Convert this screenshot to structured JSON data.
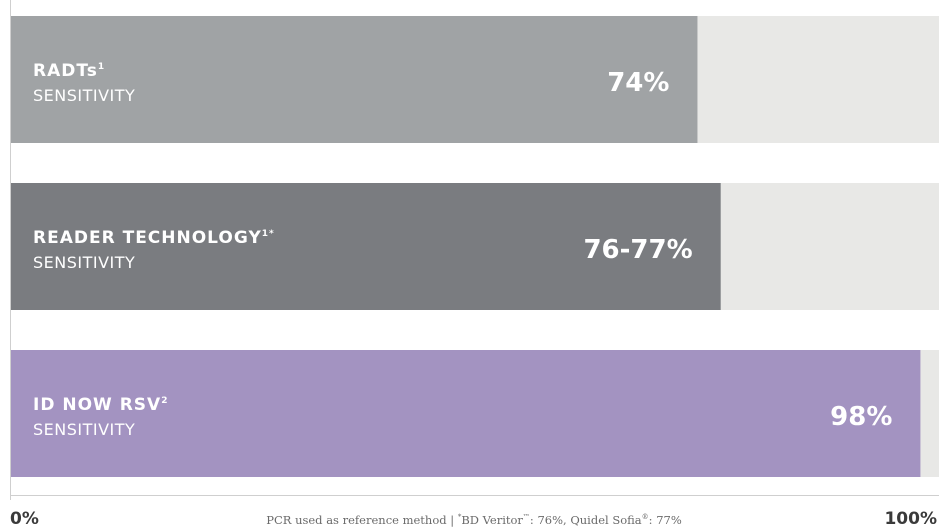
{
  "chart_data": {
    "type": "bar",
    "orientation": "horizontal",
    "xlim": [
      0,
      100
    ],
    "x_tick_labels": [
      "0%",
      "100%"
    ],
    "footnote": {
      "text_before": "PCR used as reference method  |  ",
      "mark1": "*",
      "text_middle": "BD Veritor",
      "mark2": "™",
      "text_middle2": ": 76%, Quidel Sofia",
      "mark3": "®",
      "text_after": ": 77%"
    },
    "bars": [
      {
        "title": "RADTs",
        "title_sup": "1",
        "subtitle": "SENSITIVITY",
        "value": 74,
        "value_label": "74%",
        "color": "#a0a3a5"
      },
      {
        "title": "READER TECHNOLOGY",
        "title_sup": "1*",
        "subtitle": "SENSITIVITY",
        "value": 76.5,
        "value_label": "76-77%",
        "color": "#7a7c80"
      },
      {
        "title": "ID NOW RSV",
        "title_sup": "2",
        "subtitle": "SENSITIVITY",
        "value": 98,
        "value_label": "98%",
        "color": "#a393c1"
      }
    ]
  }
}
